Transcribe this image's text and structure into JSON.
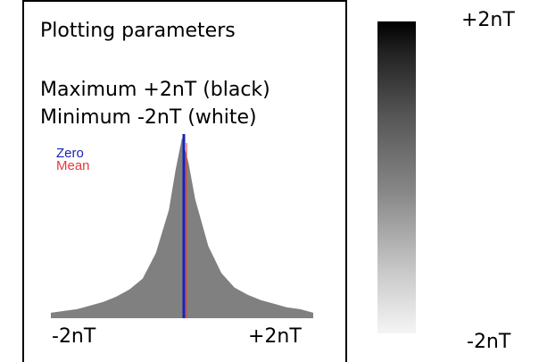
{
  "panel": {
    "title": "Plotting parameters",
    "maximum_label": "Maximum +2nT (black)",
    "minimum_label": "Minimum -2nT (white)",
    "legend": {
      "zero": "Zero",
      "mean": "Mean"
    },
    "axis": {
      "left": "-2nT",
      "right": "+2nT"
    },
    "colors": {
      "zero_line": "#1a22b6",
      "mean_line": "#e53a3a",
      "histogram_fill": "#808080"
    }
  },
  "colorbar": {
    "max_label": "+2nT",
    "min_label": "-2nT",
    "gradient_from": "#000000",
    "gradient_to": "#f5f5f5"
  },
  "chart_data": {
    "type": "area",
    "x": [
      -2.0,
      -1.8,
      -1.6,
      -1.4,
      -1.2,
      -1.0,
      -0.8,
      -0.6,
      -0.4,
      -0.2,
      -0.1,
      0.0,
      0.1,
      0.2,
      0.4,
      0.6,
      0.8,
      1.0,
      1.2,
      1.4,
      1.6,
      1.8,
      2.0
    ],
    "values": [
      0.03,
      0.04,
      0.05,
      0.07,
      0.09,
      0.12,
      0.16,
      0.22,
      0.36,
      0.6,
      0.82,
      1.0,
      0.86,
      0.66,
      0.4,
      0.25,
      0.17,
      0.13,
      0.1,
      0.08,
      0.06,
      0.05,
      0.03
    ],
    "xlim": [
      -2,
      2
    ],
    "ylim": [
      0,
      1
    ],
    "xlabel": "",
    "ylabel": "",
    "tick_labels": [
      "-2nT",
      "+2nT"
    ],
    "zero_line_x": 0.0,
    "mean_line_x": 0.0
  }
}
